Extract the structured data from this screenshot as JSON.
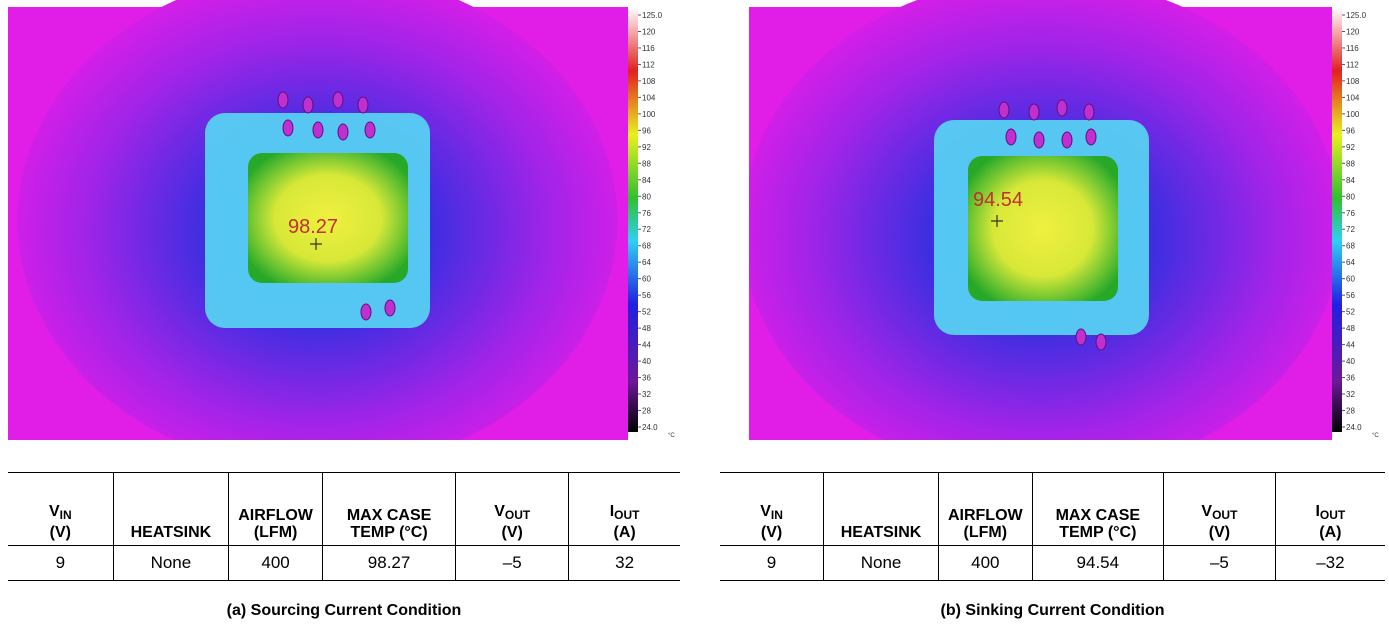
{
  "panels": [
    {
      "image": {
        "marker_label": "98.27",
        "scale_labels": [
          "125.0",
          "120",
          "116",
          "112",
          "108",
          "104",
          "100",
          "96",
          "92",
          "88",
          "84",
          "80",
          "76",
          "72",
          "68",
          "64",
          "60",
          "56",
          "52",
          "48",
          "44",
          "40",
          "36",
          "32",
          "28",
          "24.0"
        ],
        "scale_unit": "°C"
      },
      "table": {
        "headers": [
          {
            "text": "V",
            "sub": "IN",
            "line2": "(V)"
          },
          {
            "text": "HEATSINK"
          },
          {
            "text": "AIRFLOW",
            "line2": "(LFM)"
          },
          {
            "text": "MAX CASE",
            "line2": "TEMP (°C)"
          },
          {
            "text": "V",
            "sub": "OUT",
            "line2": "(V)"
          },
          {
            "text": "I",
            "sub": "OUT",
            "line2": "(A)"
          }
        ],
        "rows": [
          [
            "9",
            "None",
            "400",
            "98.27",
            "–5",
            "32"
          ]
        ]
      },
      "caption": "(a) Sourcing Current Condition"
    },
    {
      "image": {
        "marker_label": "94.54",
        "scale_labels": [
          "125.0",
          "120",
          "116",
          "112",
          "108",
          "104",
          "100",
          "96",
          "92",
          "88",
          "84",
          "80",
          "76",
          "72",
          "68",
          "64",
          "60",
          "56",
          "52",
          "48",
          "44",
          "40",
          "36",
          "32",
          "28",
          "24.0"
        ],
        "scale_unit": "°C"
      },
      "table": {
        "headers": [
          {
            "text": "V",
            "sub": "IN",
            "line2": "(V)"
          },
          {
            "text": "HEATSINK"
          },
          {
            "text": "AIRFLOW",
            "line2": "(LFM)"
          },
          {
            "text": "MAX CASE",
            "line2": "TEMP (°C)"
          },
          {
            "text": "V",
            "sub": "OUT",
            "line2": "(V)"
          },
          {
            "text": "I",
            "sub": "OUT",
            "line2": "(A)"
          }
        ],
        "rows": [
          [
            "9",
            "None",
            "400",
            "94.54",
            "–5",
            "–32"
          ]
        ]
      },
      "caption": "(b) Sinking Current Condition"
    }
  ]
}
